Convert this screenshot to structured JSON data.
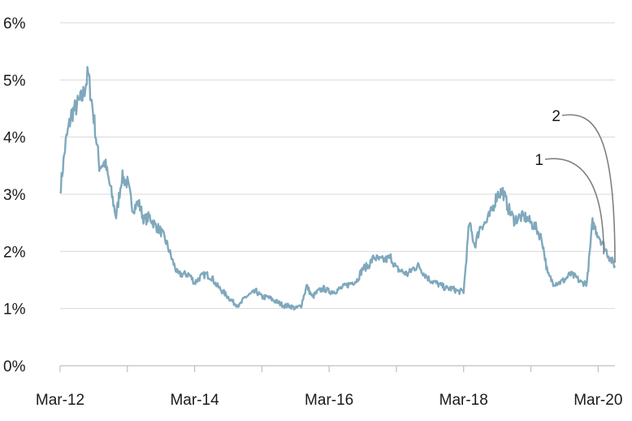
{
  "chart_data": {
    "type": "line",
    "title": "",
    "xlabel": "",
    "ylabel": "",
    "x_ticks": [
      "Mar-12",
      "Mar-14",
      "Mar-16",
      "Mar-18",
      "Mar-20"
    ],
    "y_ticks": [
      "0%",
      "1%",
      "2%",
      "3%",
      "4%",
      "5%",
      "6%"
    ],
    "xlim": [
      "2012-03",
      "2020-06"
    ],
    "ylim": [
      0,
      6
    ],
    "grid": "horizontal",
    "colors": {
      "series": "#7fa8bd",
      "grid": "#d9d9d9",
      "axis": "#bfbfbf",
      "annotation": "#808080"
    },
    "series": [
      {
        "x": [
          "2012-03",
          "2012-04",
          "2012-05",
          "2012-06",
          "2012-07",
          "2012-08",
          "2012-09",
          "2012-10",
          "2012-11",
          "2012-12",
          "2013-01",
          "2013-02",
          "2013-03",
          "2013-04",
          "2013-05",
          "2013-06",
          "2013-07",
          "2013-08",
          "2013-09",
          "2013-10",
          "2013-11",
          "2013-12",
          "2014-01",
          "2014-02",
          "2014-03",
          "2014-04",
          "2014-05",
          "2014-06",
          "2014-07",
          "2014-08",
          "2014-09",
          "2014-10",
          "2014-11",
          "2014-12",
          "2015-01",
          "2015-02",
          "2015-03",
          "2015-04",
          "2015-05",
          "2015-06",
          "2015-07",
          "2015-08",
          "2015-09",
          "2015-10",
          "2015-11",
          "2015-12",
          "2016-01",
          "2016-02",
          "2016-03",
          "2016-04",
          "2016-05",
          "2016-06",
          "2016-07",
          "2016-08",
          "2016-09",
          "2016-10",
          "2016-11",
          "2016-12",
          "2017-01",
          "2017-02",
          "2017-03",
          "2017-04",
          "2017-05",
          "2017-06",
          "2017-07",
          "2017-08",
          "2017-09",
          "2017-10",
          "2017-11",
          "2017-12",
          "2018-01",
          "2018-02",
          "2018-03",
          "2018-04",
          "2018-05",
          "2018-06",
          "2018-07",
          "2018-08",
          "2018-09",
          "2018-10",
          "2018-11",
          "2018-12",
          "2019-01",
          "2019-02",
          "2019-03",
          "2019-04",
          "2019-05",
          "2019-06",
          "2019-07",
          "2019-08",
          "2019-09",
          "2019-10",
          "2019-11",
          "2019-12",
          "2020-01",
          "2020-02",
          "2020-03",
          "2020-04",
          "2020-05",
          "2020-06"
        ],
        "values": [
          3.05,
          3.9,
          4.4,
          4.55,
          4.7,
          5.1,
          4.35,
          3.5,
          3.55,
          3.1,
          2.6,
          3.3,
          3.2,
          2.75,
          2.85,
          2.55,
          2.6,
          2.45,
          2.35,
          2.15,
          1.85,
          1.6,
          1.6,
          1.6,
          1.45,
          1.55,
          1.6,
          1.55,
          1.4,
          1.3,
          1.2,
          1.1,
          1.05,
          1.2,
          1.25,
          1.3,
          1.2,
          1.2,
          1.15,
          1.1,
          1.05,
          1.05,
          1.0,
          1.05,
          1.4,
          1.2,
          1.3,
          1.35,
          1.3,
          1.3,
          1.35,
          1.4,
          1.45,
          1.5,
          1.7,
          1.75,
          1.9,
          1.85,
          1.85,
          1.9,
          1.7,
          1.65,
          1.6,
          1.7,
          1.75,
          1.6,
          1.5,
          1.45,
          1.4,
          1.35,
          1.35,
          1.3,
          1.3,
          2.5,
          2.1,
          2.45,
          2.5,
          2.7,
          3.0,
          3.05,
          2.75,
          2.55,
          2.6,
          2.6,
          2.5,
          2.4,
          2.2,
          1.6,
          1.45,
          1.45,
          1.5,
          1.6,
          1.55,
          1.45,
          1.45,
          2.5,
          2.3,
          2.1,
          1.9,
          1.75
        ]
      }
    ],
    "annotations": [
      {
        "label": "1",
        "x": "2020-04",
        "y": 1.95
      },
      {
        "label": "2",
        "x": "2020-06",
        "y": 1.8
      }
    ]
  }
}
